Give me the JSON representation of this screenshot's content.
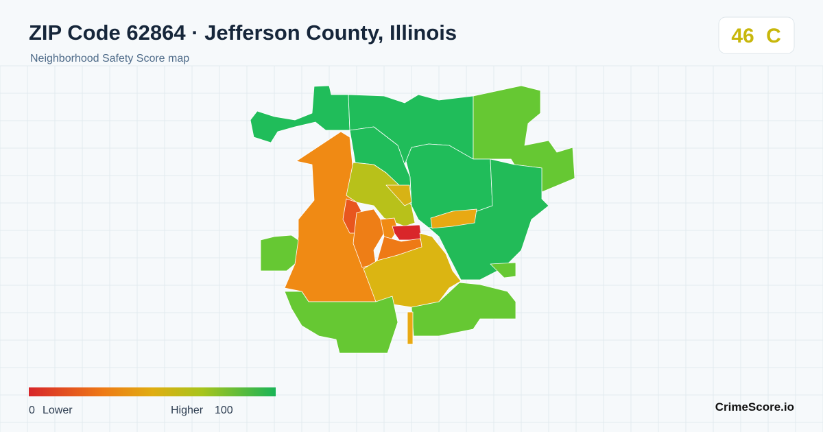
{
  "header": {
    "title": "ZIP Code 62864 · Jefferson County, Illinois",
    "subtitle": "Neighborhood Safety Score map"
  },
  "score": {
    "value": 46,
    "grade": "C"
  },
  "legend": {
    "min": 0,
    "min_label": "Lower",
    "max_label": "Higher",
    "max": 100
  },
  "brand": "CrimeScore.io"
}
